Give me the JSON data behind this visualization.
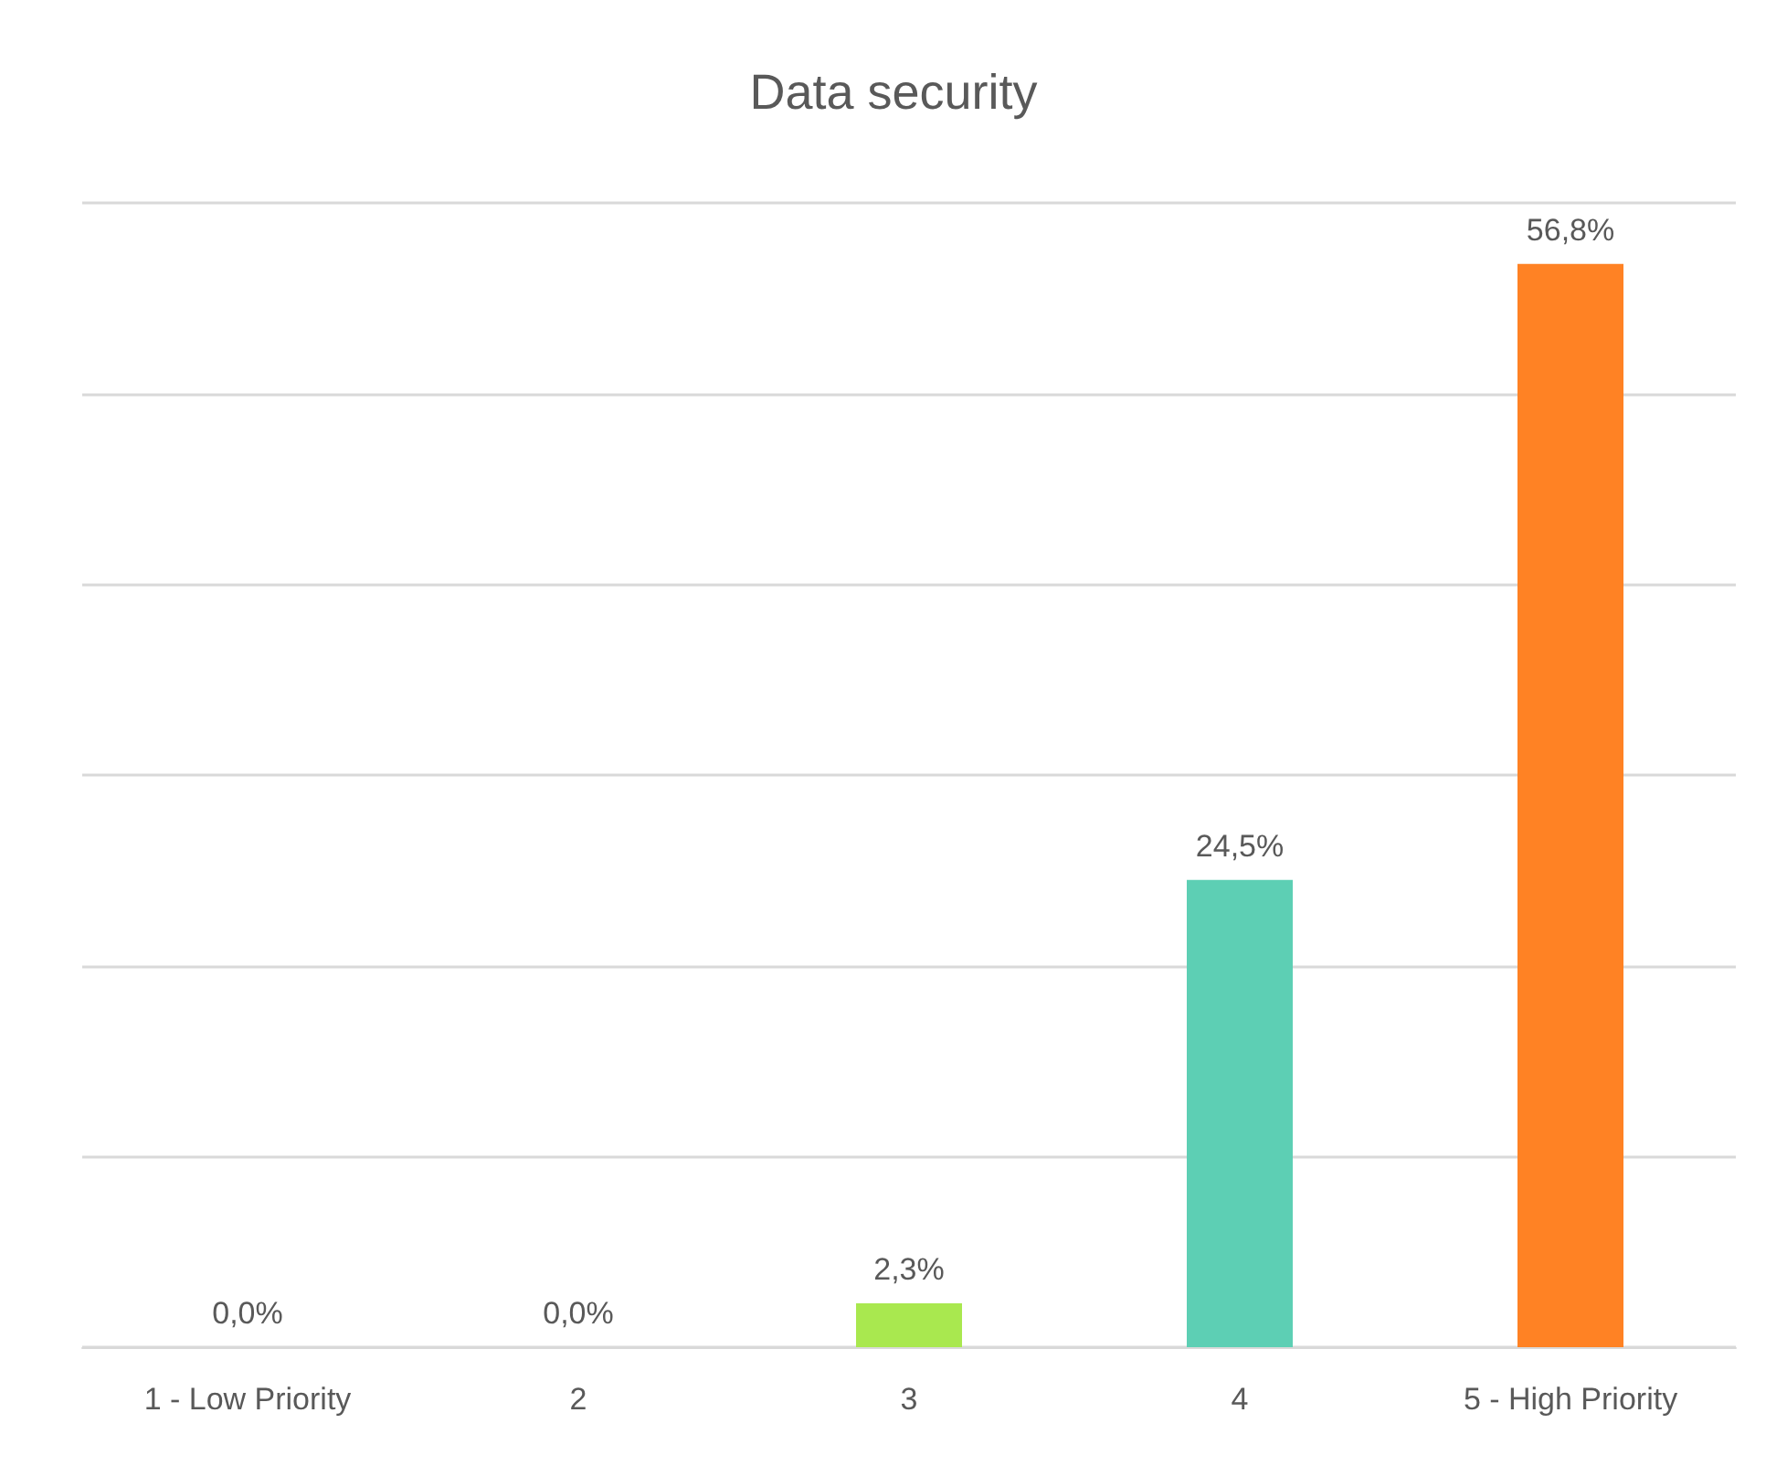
{
  "chart_data": {
    "type": "bar",
    "title": "Data security",
    "categories": [
      "1 - Low Priority",
      "2",
      "3",
      "4",
      "5 - High Priority"
    ],
    "values": [
      0,
      0,
      2.3,
      24.5,
      56.8
    ],
    "colors": [
      null,
      null,
      "#a9e84f",
      "#5dcfb4",
      "#ff8224"
    ],
    "value_labels": [
      "0,0%",
      "0,0%",
      "2,3%",
      "24,5%",
      "56,8%"
    ],
    "ylim": [
      0,
      60
    ],
    "yticks": [
      {
        "value": 0,
        "label": null
      },
      {
        "value": 10,
        "label": null
      },
      {
        "value": 20,
        "label": null
      },
      {
        "value": 30,
        "label": null
      },
      {
        "value": 40,
        "label": null
      },
      {
        "value": 50,
        "label": null
      },
      {
        "value": 60,
        "label": null
      }
    ],
    "grid": "y",
    "tick_labels": "x"
  }
}
